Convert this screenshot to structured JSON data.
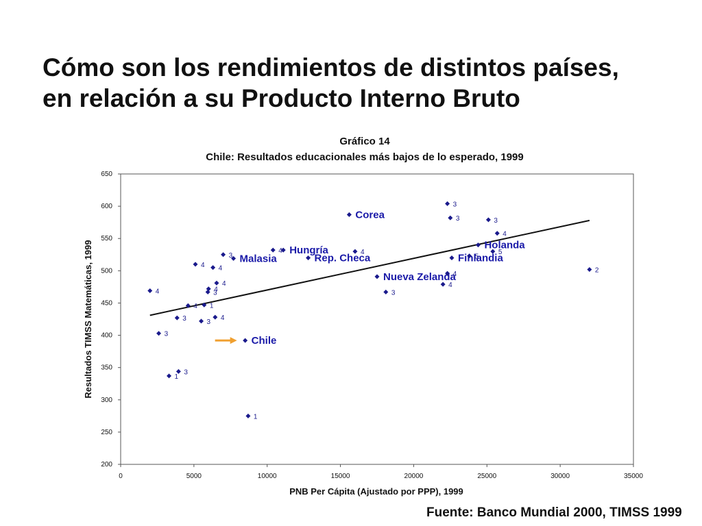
{
  "slide": {
    "title_line1": "Cómo son los rendimientos de distintos países,",
    "title_line2": "en relación a su Producto Interno Bruto",
    "source": "Fuente: Banco Mundial 2000, TIMSS 1999"
  },
  "chart_data": {
    "type": "scatter",
    "title": "Gráfico 14",
    "subtitle": "Chile: Resultados educacionales más bajos de lo esperado, 1999",
    "xlabel": "PNB Per Cápita (Ajustado por PPP), 1999",
    "ylabel": "Resultados TIMSS Matemáticas, 1999",
    "xlim": [
      0,
      35000
    ],
    "ylim": [
      200,
      650
    ],
    "x_ticks": [
      "0",
      "5000",
      "10000",
      "15000",
      "20000",
      "25000",
      "30000",
      "35000"
    ],
    "y_ticks": [
      "200",
      "250",
      "300",
      "350",
      "400",
      "450",
      "500",
      "550",
      "600",
      "650"
    ],
    "grid": false,
    "marker_color": "#1a1a8c",
    "label_color": "#1a1aa8",
    "arrow_color": "#f0a030",
    "trendline": {
      "x": [
        2000,
        32000
      ],
      "y": [
        431,
        578
      ]
    },
    "points": [
      {
        "x": 2000,
        "y": 469,
        "tag": "4"
      },
      {
        "x": 2600,
        "y": 403,
        "tag": "3"
      },
      {
        "x": 3300,
        "y": 337,
        "tag": "1"
      },
      {
        "x": 3950,
        "y": 344,
        "tag": "3"
      },
      {
        "x": 3850,
        "y": 427,
        "tag": "3"
      },
      {
        "x": 4600,
        "y": 446,
        "tag": "4"
      },
      {
        "x": 5100,
        "y": 510,
        "tag": "4"
      },
      {
        "x": 5500,
        "y": 422,
        "tag": "3"
      },
      {
        "x": 5700,
        "y": 447,
        "tag": "1"
      },
      {
        "x": 5950,
        "y": 467,
        "tag": "3"
      },
      {
        "x": 6000,
        "y": 472,
        "tag": "4"
      },
      {
        "x": 6300,
        "y": 505,
        "tag": "4"
      },
      {
        "x": 6450,
        "y": 428,
        "tag": "4"
      },
      {
        "x": 6550,
        "y": 481,
        "tag": "4"
      },
      {
        "x": 7000,
        "y": 525,
        "tag": "3"
      },
      {
        "x": 7700,
        "y": 519,
        "tag": "",
        "label": "Malasia"
      },
      {
        "x": 8500,
        "y": 392,
        "tag": "",
        "label": "Chile"
      },
      {
        "x": 8700,
        "y": 275,
        "tag": "1"
      },
      {
        "x": 10400,
        "y": 532,
        "tag": "4"
      },
      {
        "x": 11100,
        "y": 532,
        "tag": "",
        "label": "Hungría"
      },
      {
        "x": 12800,
        "y": 520,
        "tag": "",
        "label": "Rep. Checa"
      },
      {
        "x": 15600,
        "y": 587,
        "tag": "",
        "label": "Corea"
      },
      {
        "x": 16000,
        "y": 530,
        "tag": "4"
      },
      {
        "x": 17500,
        "y": 491,
        "tag": "",
        "label": "Nueva Zelanda"
      },
      {
        "x": 18100,
        "y": 467,
        "tag": "3"
      },
      {
        "x": 22000,
        "y": 479,
        "tag": "4"
      },
      {
        "x": 22300,
        "y": 496,
        "tag": "4"
      },
      {
        "x": 22300,
        "y": 604,
        "tag": "3"
      },
      {
        "x": 22500,
        "y": 582,
        "tag": "3"
      },
      {
        "x": 22600,
        "y": 520,
        "tag": "",
        "label": "Finlandia"
      },
      {
        "x": 23800,
        "y": 523,
        "tag": "5"
      },
      {
        "x": 24400,
        "y": 540,
        "tag": "",
        "label": "Holanda"
      },
      {
        "x": 25100,
        "y": 579,
        "tag": "3"
      },
      {
        "x": 25400,
        "y": 530,
        "tag": "5"
      },
      {
        "x": 25700,
        "y": 558,
        "tag": "4"
      },
      {
        "x": 32000,
        "y": 502,
        "tag": "2"
      }
    ]
  }
}
